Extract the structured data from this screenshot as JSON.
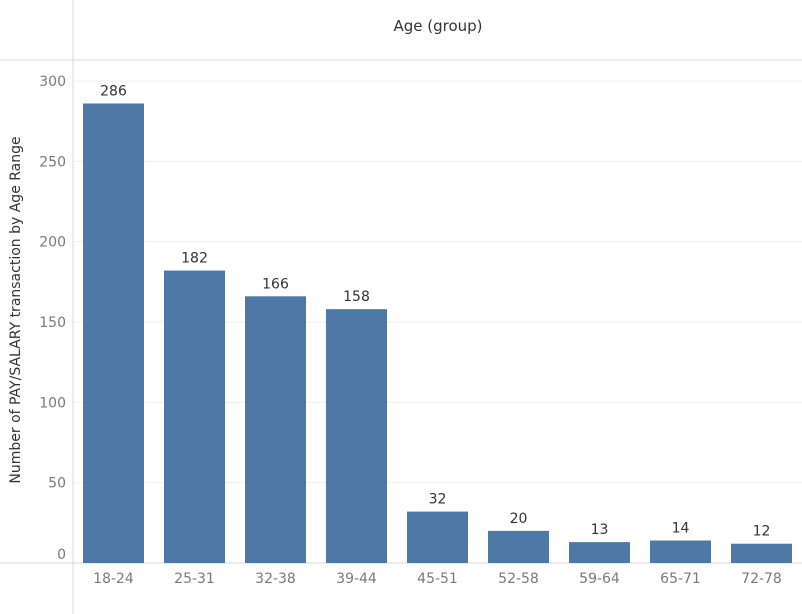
{
  "chart_data": {
    "type": "bar",
    "header": "Age (group)",
    "ylabel": "Number of PAY/SALARY transaction by Age Range",
    "categories": [
      "18-24",
      "25-31",
      "32-38",
      "39-44",
      "45-51",
      "52-58",
      "59-64",
      "65-71",
      "72-78"
    ],
    "values": [
      286,
      182,
      166,
      158,
      32,
      20,
      13,
      14,
      12
    ],
    "yticks": [
      0,
      50,
      100,
      150,
      200,
      250,
      300
    ],
    "ylim": [
      0,
      300
    ],
    "grid": true,
    "bar_color": "#4e79a7"
  }
}
